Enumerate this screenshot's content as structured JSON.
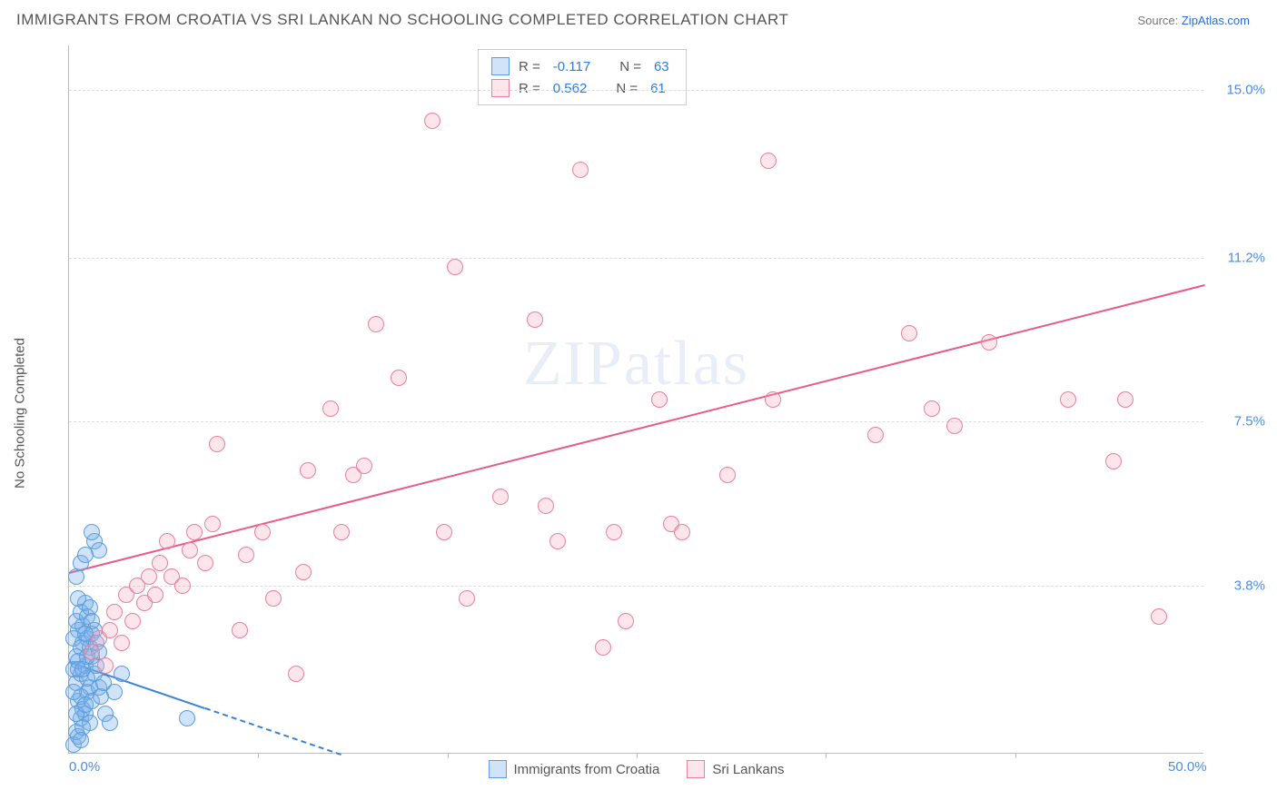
{
  "header": {
    "title": "IMMIGRANTS FROM CROATIA VS SRI LANKAN NO SCHOOLING COMPLETED CORRELATION CHART",
    "source_prefix": "Source: ",
    "source_link": "ZipAtlas.com"
  },
  "chart": {
    "type": "scatter",
    "ylabel": "No Schooling Completed",
    "watermark": "ZIPatlas",
    "xlim": [
      0,
      50
    ],
    "ylim": [
      0,
      16
    ],
    "x_ticks": [
      0,
      50
    ],
    "x_tick_labels": [
      "0.0%",
      "50.0%"
    ],
    "x_minor_ticks": [
      8.33,
      16.67,
      25.0,
      33.33,
      41.67
    ],
    "y_ticks": [
      3.8,
      7.5,
      11.2,
      15.0
    ],
    "y_tick_labels": [
      "3.8%",
      "7.5%",
      "11.2%",
      "15.0%"
    ],
    "background_color": "#ffffff",
    "grid_color": "#dddddd",
    "axis_color": "#bbbbbb",
    "point_radius": 9,
    "series": [
      {
        "name": "Immigrants from Croatia",
        "color_fill": "rgba(120, 175, 235, 0.35)",
        "color_stroke": "#5b9ddc",
        "R": "-0.117",
        "N": "63",
        "trend": {
          "x1": 0,
          "y1": 2.1,
          "x2": 12,
          "y2": 0,
          "solid_until_x": 6,
          "color": "#3b82d6"
        },
        "points": [
          [
            0.2,
            0.2
          ],
          [
            0.3,
            0.5
          ],
          [
            0.5,
            0.8
          ],
          [
            0.4,
            1.2
          ],
          [
            0.6,
            1.0
          ],
          [
            0.8,
            1.4
          ],
          [
            0.3,
            1.6
          ],
          [
            0.5,
            1.8
          ],
          [
            0.7,
            2.0
          ],
          [
            0.9,
            1.5
          ],
          [
            1.0,
            2.2
          ],
          [
            0.6,
            2.5
          ],
          [
            0.4,
            2.8
          ],
          [
            0.8,
            2.6
          ],
          [
            1.1,
            1.8
          ],
          [
            0.3,
            2.2
          ],
          [
            0.5,
            1.3
          ],
          [
            0.7,
            0.9
          ],
          [
            0.2,
            1.9
          ],
          [
            0.9,
            2.4
          ],
          [
            1.0,
            1.2
          ],
          [
            0.4,
            2.1
          ],
          [
            0.6,
            2.9
          ],
          [
            0.8,
            1.7
          ],
          [
            1.2,
            2.0
          ],
          [
            0.3,
            3.0
          ],
          [
            0.5,
            3.2
          ],
          [
            0.7,
            3.4
          ],
          [
            1.1,
            2.8
          ],
          [
            0.4,
            0.4
          ],
          [
            0.9,
            0.7
          ],
          [
            1.3,
            1.5
          ],
          [
            0.2,
            2.6
          ],
          [
            0.6,
            0.6
          ],
          [
            0.8,
            3.1
          ],
          [
            1.0,
            2.7
          ],
          [
            0.3,
            0.9
          ],
          [
            0.5,
            2.4
          ],
          [
            0.7,
            1.1
          ],
          [
            1.4,
            1.3
          ],
          [
            0.4,
            1.9
          ],
          [
            0.9,
            3.3
          ],
          [
            1.2,
            2.5
          ],
          [
            0.2,
            1.4
          ],
          [
            0.6,
            1.9
          ],
          [
            0.8,
            2.2
          ],
          [
            1.0,
            3.0
          ],
          [
            1.3,
            2.3
          ],
          [
            0.5,
            0.3
          ],
          [
            0.7,
            2.7
          ],
          [
            1.5,
            1.6
          ],
          [
            0.4,
            3.5
          ],
          [
            1.6,
            0.9
          ],
          [
            2.0,
            1.4
          ],
          [
            2.3,
            1.8
          ],
          [
            1.8,
            0.7
          ],
          [
            0.3,
            4.0
          ],
          [
            1.1,
            4.8
          ],
          [
            1.3,
            4.6
          ],
          [
            0.5,
            4.3
          ],
          [
            1.0,
            5.0
          ],
          [
            0.7,
            4.5
          ],
          [
            5.2,
            0.8
          ]
        ]
      },
      {
        "name": "Sri Lankans",
        "color_fill": "rgba(245, 170, 190, 0.30)",
        "color_stroke": "#e97fa0",
        "R": "0.562",
        "N": "61",
        "trend": {
          "x1": 0,
          "y1": 4.1,
          "x2": 50,
          "y2": 10.6,
          "solid_until_x": 50,
          "color": "#e85a88"
        },
        "points": [
          [
            1.0,
            2.3
          ],
          [
            1.3,
            2.6
          ],
          [
            1.6,
            2.0
          ],
          [
            1.8,
            2.8
          ],
          [
            2.0,
            3.2
          ],
          [
            2.3,
            2.5
          ],
          [
            2.5,
            3.6
          ],
          [
            2.8,
            3.0
          ],
          [
            3.0,
            3.8
          ],
          [
            3.3,
            3.4
          ],
          [
            3.5,
            4.0
          ],
          [
            3.8,
            3.6
          ],
          [
            4.0,
            4.3
          ],
          [
            4.3,
            4.8
          ],
          [
            4.5,
            4.0
          ],
          [
            5.0,
            3.8
          ],
          [
            5.3,
            4.6
          ],
          [
            5.5,
            5.0
          ],
          [
            6.0,
            4.3
          ],
          [
            6.3,
            5.2
          ],
          [
            6.5,
            7.0
          ],
          [
            7.8,
            4.5
          ],
          [
            7.5,
            2.8
          ],
          [
            8.5,
            5.0
          ],
          [
            9.0,
            3.5
          ],
          [
            10.0,
            1.8
          ],
          [
            10.5,
            6.4
          ],
          [
            10.3,
            4.1
          ],
          [
            11.5,
            7.8
          ],
          [
            12.0,
            5.0
          ],
          [
            12.5,
            6.3
          ],
          [
            13.0,
            6.5
          ],
          [
            13.5,
            9.7
          ],
          [
            14.5,
            8.5
          ],
          [
            16.0,
            14.3
          ],
          [
            16.5,
            5.0
          ],
          [
            17.0,
            11.0
          ],
          [
            17.5,
            3.5
          ],
          [
            19.0,
            5.8
          ],
          [
            20.5,
            9.8
          ],
          [
            21.0,
            5.6
          ],
          [
            21.5,
            4.8
          ],
          [
            22.5,
            13.2
          ],
          [
            23.5,
            2.4
          ],
          [
            24.0,
            5.0
          ],
          [
            24.5,
            3.0
          ],
          [
            26.0,
            8.0
          ],
          [
            26.5,
            5.2
          ],
          [
            27.0,
            5.0
          ],
          [
            29.0,
            6.3
          ],
          [
            30.8,
            13.4
          ],
          [
            31.0,
            8.0
          ],
          [
            35.5,
            7.2
          ],
          [
            37.0,
            9.5
          ],
          [
            38.0,
            7.8
          ],
          [
            39.0,
            7.4
          ],
          [
            40.5,
            9.3
          ],
          [
            44.0,
            8.0
          ],
          [
            46.0,
            6.6
          ],
          [
            46.5,
            8.0
          ],
          [
            48.0,
            3.1
          ]
        ]
      }
    ],
    "stats_box": {
      "r_label": "R =",
      "n_label": "N ="
    },
    "legend": {
      "items": [
        "Immigrants from Croatia",
        "Sri Lankans"
      ]
    }
  }
}
